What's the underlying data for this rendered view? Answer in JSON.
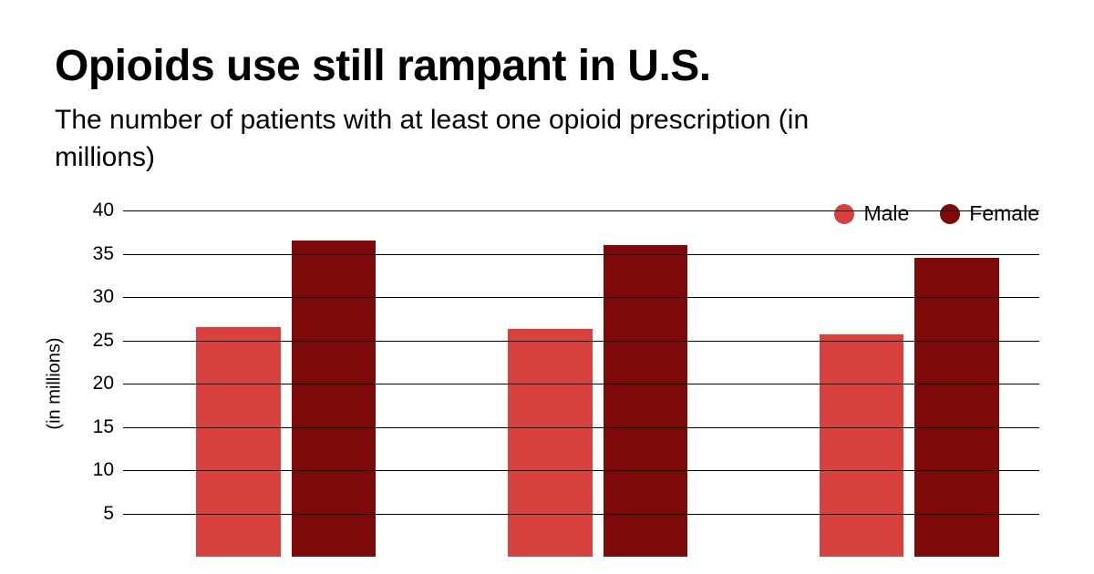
{
  "title": "Opioids use still rampant in U.S.",
  "subtitle": "The number of patients with at least one opioid prescription (in millions)",
  "chart": {
    "type": "bar",
    "ylabel": "(in millions)",
    "ylim": [
      0,
      40
    ],
    "ytick_step": 5,
    "yticks": [
      5,
      10,
      15,
      20,
      25,
      30,
      35,
      40
    ],
    "grid_color": "#000000",
    "background_color": "#ffffff",
    "title_fontsize": 48,
    "subtitle_fontsize": 30,
    "label_fontsize": 20,
    "tick_fontsize": 21,
    "legend_fontsize": 23,
    "series": [
      {
        "name": "Male",
        "color": "#d9413f"
      },
      {
        "name": "Female",
        "color": "#7e0909"
      }
    ],
    "groups": 3,
    "values": {
      "male": [
        26.5,
        26.3,
        25.7
      ],
      "female": [
        36.5,
        36.0,
        34.5
      ]
    },
    "bar_width_pct": 9.2,
    "bar_gap_pct": 1.2,
    "group_positions_pct": [
      8.0,
      42.0,
      76.0
    ]
  }
}
